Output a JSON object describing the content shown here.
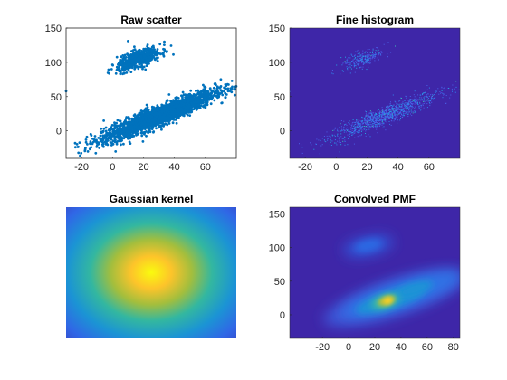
{
  "chart_data": [
    {
      "type": "scatter",
      "title": "Raw scatter",
      "xlim": [
        -30,
        80
      ],
      "ylim": [
        -40,
        150
      ],
      "xticks": [
        -20,
        0,
        20,
        40,
        60
      ],
      "yticks": [
        0,
        50,
        100,
        150
      ],
      "grid": false,
      "marker_color": "#0072bd",
      "clusters": [
        {
          "center": [
            30,
            22
          ],
          "slope": 0.9,
          "x_spread": 18,
          "y_spread": 7,
          "n": 2600
        },
        {
          "center": [
            17,
            105
          ],
          "slope": 0.75,
          "x_spread": 7,
          "y_spread": 6,
          "n": 550
        }
      ],
      "x": [
        -30,
        2,
        5,
        70,
        76,
        -22,
        10
      ],
      "y": [
        58,
        -30,
        83,
        75,
        58,
        -32,
        131
      ]
    },
    {
      "type": "heatmap",
      "title": "Fine histogram",
      "xlim": [
        -30,
        80
      ],
      "ylim": [
        -40,
        150
      ],
      "xticks": [
        -20,
        0,
        20,
        40,
        60
      ],
      "yticks": [
        0,
        50,
        100,
        150
      ],
      "colormap": "parula",
      "background_color": "#3e26a8"
    },
    {
      "type": "heatmap",
      "title": "Gaussian kernel",
      "axes_visible": false,
      "peak": [
        0.5,
        0.5
      ],
      "colormap": "parula"
    },
    {
      "type": "heatmap",
      "title": "Convolved PMF",
      "xlim": [
        -45,
        85
      ],
      "ylim": [
        -35,
        160
      ],
      "xticks": [
        -20,
        0,
        20,
        40,
        60,
        80
      ],
      "yticks": [
        0,
        50,
        100,
        150
      ],
      "colormap": "parula",
      "peak_location": [
        30,
        20
      ]
    }
  ]
}
